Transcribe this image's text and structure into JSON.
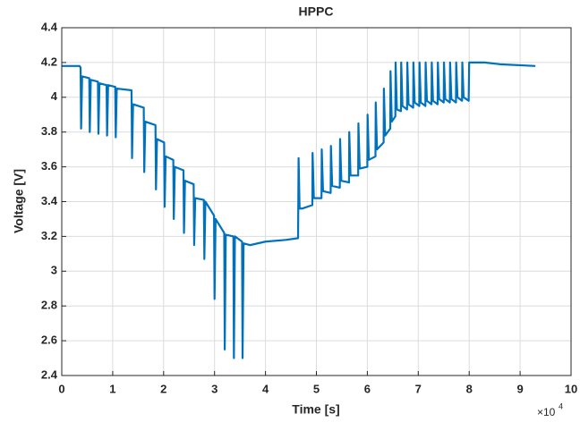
{
  "chart_data": {
    "type": "line",
    "title": "HPPC",
    "x_label": "Time [s]",
    "y_label": "Voltage [V]",
    "x_scale_label": "×10",
    "x_scale_exponent": "4",
    "color": "#0072bd",
    "grid": true,
    "xlim": [
      0,
      10
    ],
    "xticks": [
      0,
      1,
      2,
      3,
      4,
      5,
      6,
      7,
      8,
      9,
      10
    ],
    "ylim": [
      2.4,
      4.4
    ],
    "yticks": [
      2.4,
      2.6,
      2.8,
      3,
      3.2,
      3.4,
      3.6,
      3.8,
      4,
      4.2,
      4.4
    ],
    "x": [
      0,
      0.35,
      0.37,
      0.38,
      0.4,
      0.54,
      0.55,
      0.57,
      0.71,
      0.72,
      0.74,
      0.88,
      0.89,
      0.91,
      1.05,
      1.06,
      1.08,
      1.37,
      1.38,
      1.4,
      1.61,
      1.62,
      1.64,
      1.84,
      1.85,
      1.87,
      2.01,
      2.02,
      2.04,
      2.19,
      2.2,
      2.22,
      2.39,
      2.4,
      2.42,
      2.59,
      2.6,
      2.62,
      2.79,
      2.8,
      2.82,
      2.99,
      3.0,
      3.02,
      3.19,
      3.2,
      3.22,
      3.37,
      3.38,
      3.4,
      3.54,
      3.55,
      3.57,
      3.7,
      4.0,
      4.4,
      4.64,
      4.65,
      4.67,
      4.72,
      4.92,
      4.925,
      4.95,
      5.1,
      5.105,
      5.13,
      5.28,
      5.285,
      5.31,
      5.46,
      5.465,
      5.49,
      5.64,
      5.645,
      5.67,
      5.82,
      5.825,
      5.85,
      6.0,
      6.005,
      6.03,
      6.16,
      6.165,
      6.19,
      6.32,
      6.325,
      6.35,
      6.45,
      6.455,
      6.48,
      6.55,
      6.555,
      6.58,
      6.66,
      6.665,
      6.69,
      6.78,
      6.785,
      6.81,
      6.9,
      6.905,
      6.93,
      7.02,
      7.025,
      7.05,
      7.14,
      7.145,
      7.17,
      7.26,
      7.265,
      7.29,
      7.38,
      7.385,
      7.41,
      7.5,
      7.505,
      7.53,
      7.62,
      7.625,
      7.65,
      7.74,
      7.745,
      7.77,
      7.86,
      7.865,
      7.89,
      7.99,
      8.0,
      8.3,
      8.6,
      9.3
    ],
    "values": [
      4.18,
      4.18,
      4.17,
      3.82,
      4.12,
      4.11,
      3.8,
      4.1,
      4.09,
      3.79,
      4.08,
      4.07,
      3.78,
      4.07,
      4.06,
      3.77,
      4.05,
      4.04,
      3.65,
      3.96,
      3.94,
      3.57,
      3.86,
      3.84,
      3.47,
      3.76,
      3.74,
      3.37,
      3.66,
      3.64,
      3.3,
      3.6,
      3.58,
      3.22,
      3.52,
      3.5,
      3.15,
      3.42,
      3.41,
      3.07,
      3.4,
      3.32,
      2.84,
      3.3,
      3.22,
      2.55,
      3.21,
      3.2,
      2.5,
      3.2,
      3.17,
      2.5,
      3.16,
      3.15,
      3.17,
      3.18,
      3.19,
      3.65,
      3.36,
      3.36,
      3.38,
      3.68,
      3.42,
      3.42,
      3.7,
      3.46,
      3.45,
      3.72,
      3.49,
      3.48,
      3.76,
      3.52,
      3.51,
      3.8,
      3.55,
      3.55,
      3.85,
      3.59,
      3.6,
      3.9,
      3.64,
      3.66,
      3.97,
      3.7,
      3.74,
      4.05,
      3.78,
      3.82,
      4.15,
      3.86,
      3.89,
      4.2,
      3.93,
      3.92,
      4.2,
      3.95,
      3.93,
      4.2,
      3.96,
      3.94,
      4.2,
      3.97,
      3.95,
      4.2,
      3.97,
      3.95,
      4.2,
      3.98,
      3.96,
      4.2,
      3.98,
      3.96,
      4.2,
      3.99,
      3.97,
      4.2,
      3.99,
      3.97,
      4.2,
      3.99,
      3.97,
      4.2,
      4.0,
      3.98,
      4.2,
      4.0,
      3.98,
      4.2,
      4.2,
      4.19,
      4.18
    ]
  }
}
